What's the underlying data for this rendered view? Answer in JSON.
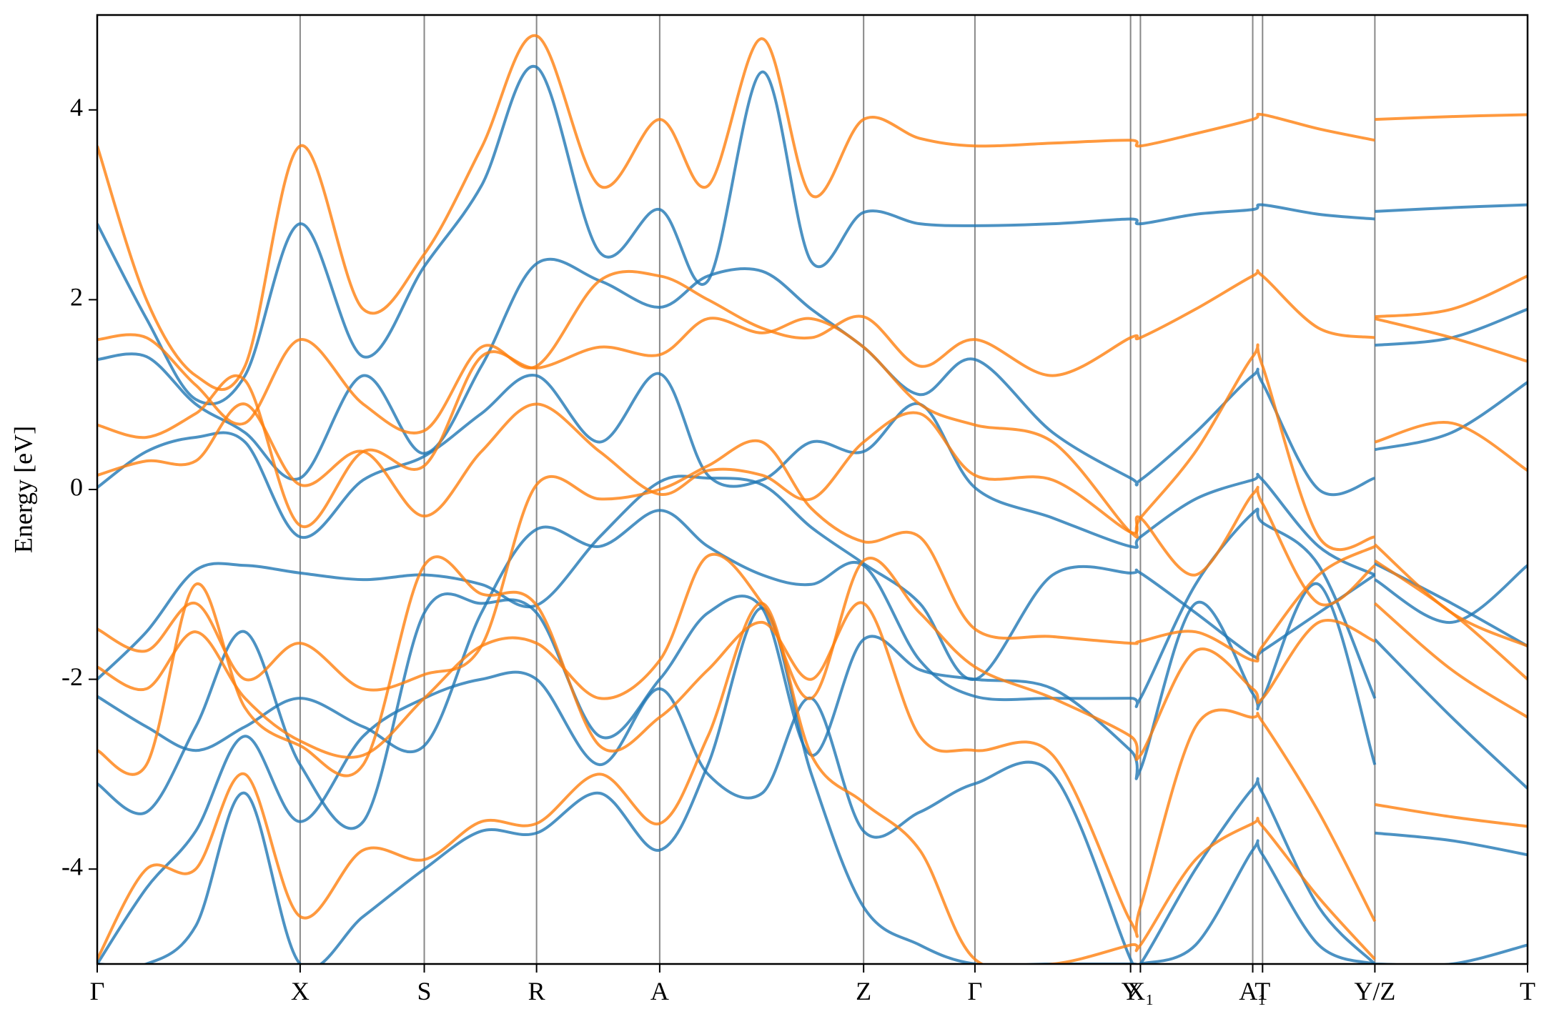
{
  "chart_data": {
    "type": "line",
    "ylabel": "Energy [eV]",
    "xlim": [
      0,
      14.52
    ],
    "ylim": [
      -5,
      5
    ],
    "yticks": [
      -4,
      -2,
      0,
      2,
      4
    ],
    "xticks": [
      {
        "value": 0,
        "label": "Γ"
      },
      {
        "value": 2.06,
        "label": "X"
      },
      {
        "value": 3.32,
        "label": "S"
      },
      {
        "value": 4.46,
        "label": "R"
      },
      {
        "value": 5.71,
        "label": "A"
      },
      {
        "value": 7.78,
        "label": "Z"
      },
      {
        "value": 8.91,
        "label": "Γ"
      },
      {
        "value": 10.49,
        "label": "Y"
      },
      {
        "value": 10.59,
        "label": "X₁"
      },
      {
        "value": 11.73,
        "label": "A₁"
      },
      {
        "value": 11.83,
        "label": "T"
      },
      {
        "value": 12.97,
        "label": "Y/Z"
      },
      {
        "value": 14.52,
        "label": "T"
      }
    ],
    "x": [
      0,
      0.5,
      1.0,
      1.5,
      2.06,
      2.7,
      3.32,
      3.9,
      4.46,
      5.1,
      5.71,
      6.2,
      6.75,
      7.25,
      7.78,
      8.35,
      8.91,
      9.7,
      10.49,
      10.59,
      11.15,
      11.73,
      11.83,
      12.4,
      12.97,
      12.97,
      12.97,
      13.75,
      14.52
    ],
    "series": [
      {
        "color": "#1f77b4",
        "values": [
          2.8,
          1.8,
          0.95,
          1.2,
          2.8,
          1.4,
          2.35,
          3.2,
          4.45,
          2.5,
          2.95,
          2.2,
          4.4,
          2.4,
          2.92,
          2.8,
          2.78,
          2.8,
          2.85,
          2.8,
          2.9,
          2.95,
          3.0,
          2.9,
          2.85,
          null,
          2.93,
          2.97,
          3.0
        ]
      },
      {
        "color": "#1f77b4",
        "values": [
          1.37,
          1.4,
          0.9,
          0.6,
          0.12,
          1.2,
          0.38,
          1.3,
          2.38,
          2.2,
          1.92,
          2.25,
          2.3,
          1.9,
          1.5,
          1.0,
          1.37,
          0.6,
          0.12,
          0.1,
          0.6,
          1.2,
          1.12,
          0.0,
          0.12,
          null,
          1.52,
          1.6,
          1.9
        ]
      },
      {
        "color": "#1f77b4",
        "values": [
          0.02,
          0.4,
          0.55,
          0.5,
          -0.5,
          0.1,
          0.35,
          0.8,
          1.2,
          0.5,
          1.22,
          0.15,
          0.1,
          0.5,
          0.4,
          0.9,
          0.02,
          -0.3,
          -0.6,
          -0.5,
          -0.1,
          0.1,
          0.1,
          -0.6,
          -0.9,
          null,
          0.42,
          0.6,
          1.13
        ]
      },
      {
        "color": "#1f77b4",
        "values": [
          -2.0,
          -1.5,
          -0.85,
          -0.8,
          -0.88,
          -0.95,
          -0.9,
          -1.0,
          -1.22,
          -0.5,
          0.08,
          0.12,
          0.05,
          -0.4,
          -0.78,
          -1.2,
          -2.0,
          -0.9,
          -0.88,
          -0.88,
          -1.3,
          -1.75,
          -1.7,
          -1.3,
          -0.9,
          null,
          -0.78,
          -1.2,
          -1.65
        ]
      },
      {
        "color": "#1f77b4",
        "values": [
          -2.18,
          -2.5,
          -2.75,
          -2.5,
          -2.2,
          -2.5,
          -2.7,
          -1.3,
          -0.42,
          -0.6,
          -0.22,
          -0.6,
          -0.9,
          -1.0,
          -0.8,
          -1.8,
          -2.18,
          -2.2,
          -2.2,
          -2.2,
          -1.0,
          -0.25,
          -0.35,
          -0.8,
          -2.2,
          null,
          -0.95,
          -1.4,
          -0.8
        ]
      },
      {
        "color": "#1f77b4",
        "values": [
          -3.1,
          -3.4,
          -2.5,
          -1.5,
          -2.9,
          -3.5,
          -1.3,
          -1.2,
          -1.3,
          -2.6,
          -2.0,
          -1.3,
          -1.25,
          -2.8,
          -1.58,
          -1.9,
          -2.0,
          -2.1,
          -2.75,
          -2.95,
          -1.2,
          -2.15,
          -2.2,
          -1.0,
          -2.9,
          null,
          -1.58,
          -2.4,
          -3.15
        ]
      },
      {
        "color": "#1f77b4",
        "values": [
          -5.0,
          -4.2,
          -3.6,
          -2.6,
          -3.5,
          -2.6,
          -2.2,
          -2.0,
          -2.0,
          -2.9,
          -2.1,
          -3.0,
          -3.2,
          -2.2,
          -3.6,
          -3.4,
          -3.1,
          -3.0,
          -4.95,
          -5.0,
          -4.0,
          -3.15,
          -3.2,
          -4.4,
          -5.0,
          null,
          -3.62,
          -3.7,
          -3.85
        ]
      },
      {
        "color": "#1f77b4",
        "values": [
          -5.0,
          -5.0,
          -4.6,
          -3.2,
          -5.0,
          -4.5,
          -4.0,
          -3.6,
          -3.62,
          -3.2,
          -3.8,
          -2.9,
          -1.25,
          -3.0,
          -4.4,
          -4.8,
          -5.0,
          -5.0,
          -5.0,
          -5.0,
          -4.8,
          -3.8,
          -3.85,
          -4.8,
          -5.0,
          null,
          -5.0,
          -5.0,
          -4.8
        ]
      },
      {
        "color": "#ff7f0e",
        "values": [
          3.62,
          2.0,
          1.2,
          1.3,
          3.62,
          1.9,
          2.48,
          3.6,
          4.78,
          3.2,
          3.9,
          3.2,
          4.75,
          3.1,
          3.9,
          3.7,
          3.62,
          3.65,
          3.68,
          3.62,
          3.75,
          3.9,
          3.95,
          3.8,
          3.68,
          null,
          3.9,
          3.93,
          3.95
        ]
      },
      {
        "color": "#ff7f0e",
        "values": [
          1.58,
          1.6,
          1.1,
          0.7,
          1.58,
          0.9,
          0.62,
          1.5,
          1.3,
          2.2,
          2.25,
          2.0,
          1.7,
          1.6,
          1.82,
          1.3,
          1.58,
          1.2,
          1.6,
          1.6,
          1.9,
          2.25,
          2.25,
          1.7,
          1.6,
          null,
          1.82,
          1.9,
          2.25
        ]
      },
      {
        "color": "#ff7f0e",
        "values": [
          0.68,
          0.55,
          0.8,
          1.15,
          -0.38,
          0.4,
          0.25,
          1.4,
          1.28,
          1.5,
          1.42,
          1.8,
          1.65,
          1.8,
          1.5,
          0.9,
          0.68,
          0.5,
          -0.45,
          -0.3,
          0.4,
          1.4,
          1.3,
          -0.5,
          -0.5,
          null,
          1.8,
          1.6,
          1.35
        ]
      },
      {
        "color": "#ff7f0e",
        "values": [
          0.15,
          0.3,
          0.3,
          0.9,
          0.05,
          0.4,
          -0.28,
          0.4,
          0.9,
          0.4,
          -0.05,
          0.2,
          0.15,
          -0.1,
          0.5,
          0.8,
          0.15,
          0.1,
          -0.45,
          -0.3,
          -0.9,
          -0.05,
          -0.15,
          -1.2,
          -0.8,
          null,
          0.5,
          0.7,
          0.2
        ]
      },
      {
        "color": "#ff7f0e",
        "values": [
          -1.47,
          -1.7,
          -1.2,
          -2.0,
          -1.62,
          -2.1,
          -1.95,
          -1.65,
          0.05,
          -0.1,
          0.0,
          0.25,
          0.5,
          -0.2,
          -0.55,
          -0.5,
          -1.47,
          -1.55,
          -1.62,
          -1.6,
          -1.5,
          -1.8,
          -1.65,
          -0.9,
          -0.6,
          null,
          -0.58,
          -1.3,
          -1.65
        ]
      },
      {
        "color": "#ff7f0e",
        "values": [
          -1.87,
          -2.1,
          -1.5,
          -2.2,
          -2.65,
          -2.8,
          -2.2,
          -1.65,
          -1.62,
          -2.2,
          -1.8,
          -0.7,
          -1.2,
          -2.2,
          -0.75,
          -1.3,
          -1.87,
          -2.2,
          -2.6,
          -2.8,
          -1.7,
          -2.1,
          -2.2,
          -1.4,
          -1.6,
          null,
          -0.75,
          -1.3,
          -2.0
        ]
      },
      {
        "color": "#ff7f0e",
        "values": [
          -2.75,
          -2.9,
          -1.0,
          -2.3,
          -2.7,
          -2.9,
          -0.8,
          -1.1,
          -1.22,
          -2.7,
          -2.4,
          -1.9,
          -1.4,
          -2.0,
          -1.2,
          -2.6,
          -2.75,
          -2.8,
          -4.55,
          -4.4,
          -2.5,
          -2.4,
          -2.45,
          -3.4,
          -4.55,
          null,
          -1.2,
          -1.9,
          -2.4
        ]
      },
      {
        "color": "#ff7f0e",
        "values": [
          -4.95,
          -4.0,
          -4.0,
          -3.0,
          -4.5,
          -3.8,
          -3.9,
          -3.5,
          -3.52,
          -3.0,
          -3.52,
          -2.6,
          -1.2,
          -2.8,
          -3.3,
          -3.8,
          -4.95,
          -5.0,
          -4.8,
          -4.8,
          -3.9,
          -3.52,
          -3.55,
          -4.3,
          -4.95,
          null,
          -3.32,
          -3.45,
          -3.55
        ]
      }
    ]
  }
}
